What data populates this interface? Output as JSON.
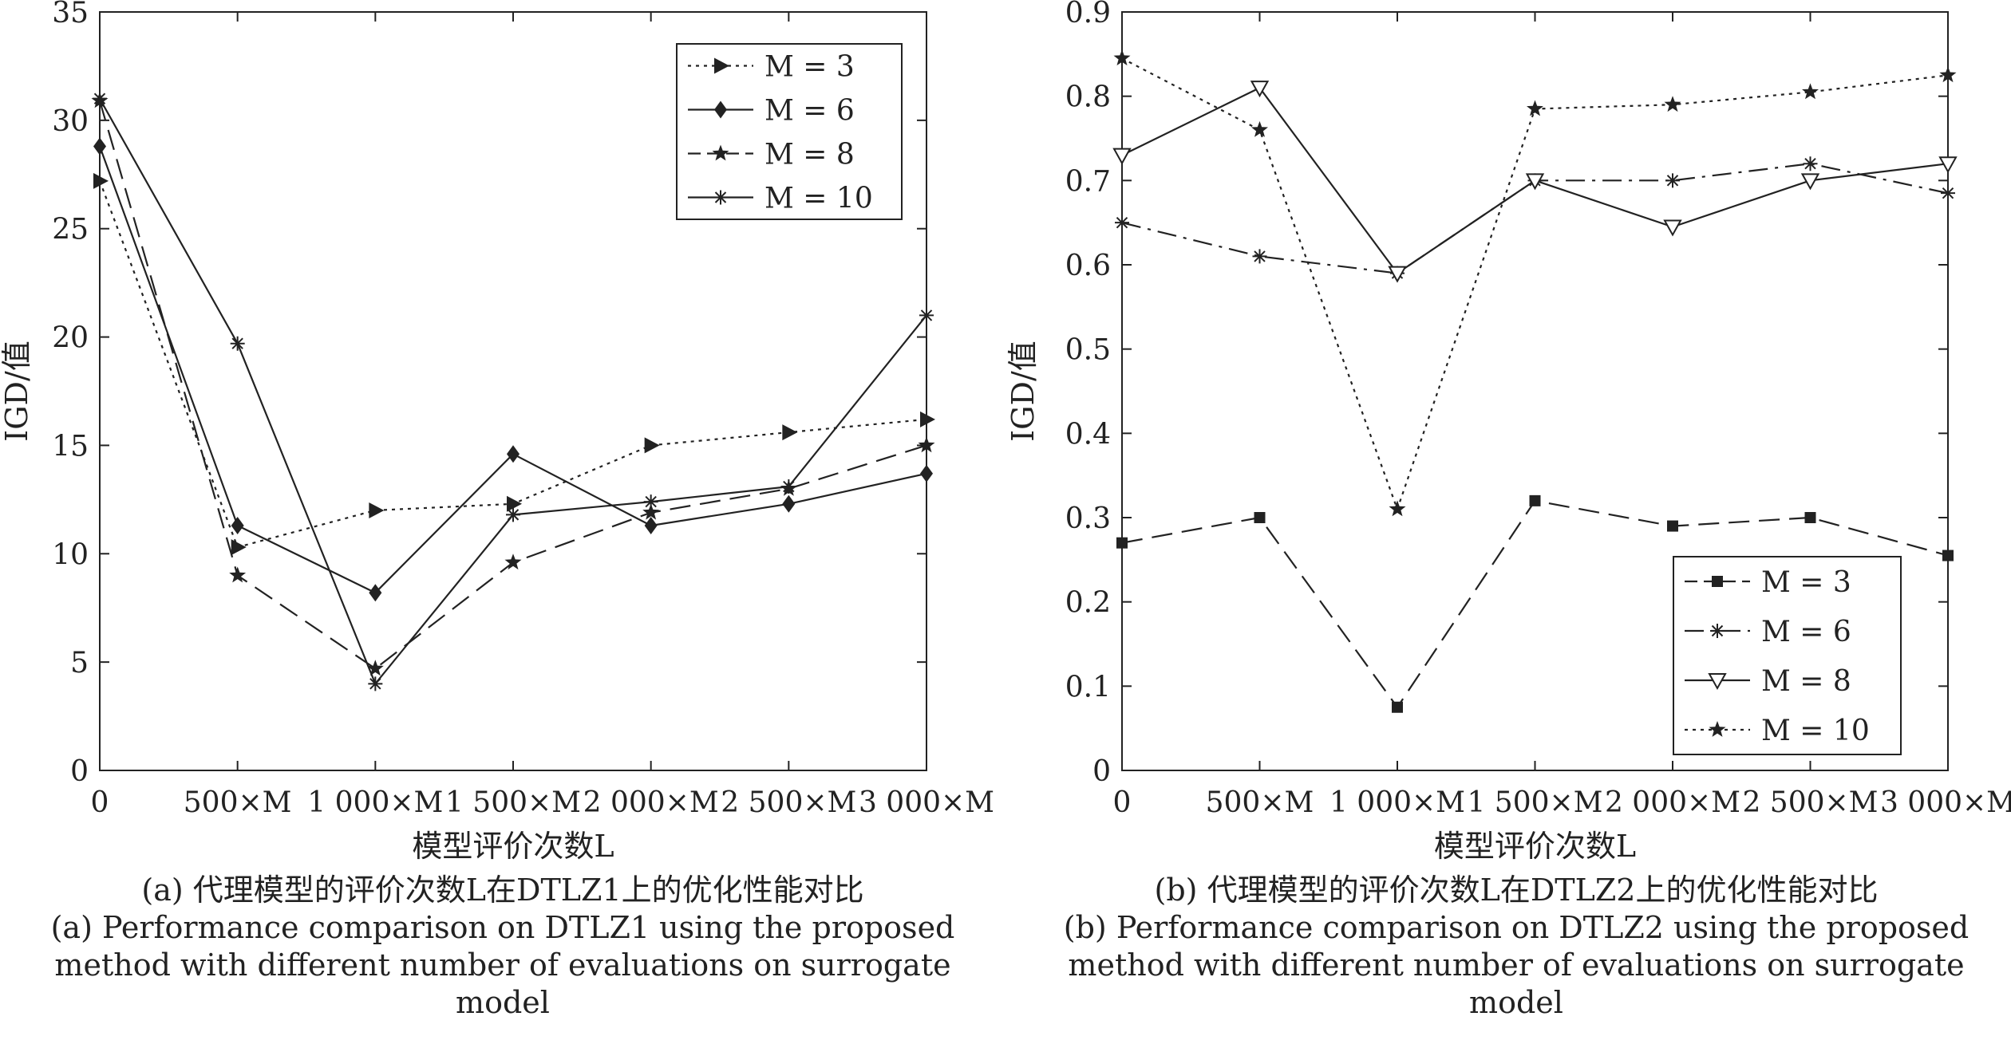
{
  "chart_data": [
    {
      "type": "line",
      "categories": [
        "0",
        "500×M",
        "1 000×M",
        "1 500×M",
        "2 000×M",
        "2 500×M",
        "3 000×M"
      ],
      "xlabel": "模型评价次数L",
      "ylabel": "IGD/值",
      "ylim": [
        0,
        35
      ],
      "yticks": [
        "0",
        "5",
        "10",
        "15",
        "20",
        "25",
        "30",
        "35"
      ],
      "grid": false,
      "legend_position": "top-right",
      "series": [
        {
          "name": "M = 3",
          "style": "dotted",
          "marker": "triangle-right",
          "values": [
            27.2,
            10.3,
            12.0,
            12.3,
            15.0,
            15.6,
            16.2
          ]
        },
        {
          "name": "M = 6",
          "style": "solid",
          "marker": "diamond",
          "values": [
            28.8,
            11.3,
            8.2,
            14.6,
            11.3,
            12.3,
            13.7
          ]
        },
        {
          "name": "M = 8",
          "style": "dashed",
          "marker": "star",
          "values": [
            30.9,
            9.0,
            4.7,
            9.6,
            11.9,
            13.0,
            15.0
          ]
        },
        {
          "name": "M = 10",
          "style": "solid",
          "marker": "asterisk",
          "values": [
            31.0,
            19.7,
            4.0,
            11.8,
            12.4,
            13.1,
            21.0
          ]
        }
      ],
      "caption_cn": "(a) 代理模型的评价次数L在DTLZ1上的优化性能对比",
      "caption_en": [
        "(a) Performance comparison on DTLZ1 using the proposed",
        "method with different number of evaluations on surrogate",
        "model"
      ]
    },
    {
      "type": "line",
      "categories": [
        "0",
        "500×M",
        "1 000×M",
        "1 500×M",
        "2 000×M",
        "2 500×M",
        "3 000×M"
      ],
      "xlabel": "模型评价次数L",
      "ylabel": "IGD/值",
      "ylim": [
        0,
        0.9
      ],
      "yticks": [
        "0",
        "0.1",
        "0.2",
        "0.3",
        "0.4",
        "0.5",
        "0.6",
        "0.7",
        "0.8",
        "0.9"
      ],
      "grid": false,
      "legend_position": "bottom-right",
      "series": [
        {
          "name": "M = 3",
          "style": "dashed",
          "marker": "square",
          "values": [
            0.27,
            0.3,
            0.075,
            0.32,
            0.29,
            0.3,
            0.255
          ]
        },
        {
          "name": "M = 6",
          "style": "dashdot",
          "marker": "asterisk",
          "values": [
            0.65,
            0.61,
            0.59,
            0.7,
            0.7,
            0.72,
            0.685
          ]
        },
        {
          "name": "M = 8",
          "style": "solid",
          "marker": "triangle-down-open",
          "values": [
            0.73,
            0.81,
            0.59,
            0.7,
            0.645,
            0.7,
            0.72
          ]
        },
        {
          "name": "M = 10",
          "style": "dotted",
          "marker": "star",
          "values": [
            0.845,
            0.76,
            0.31,
            0.785,
            0.79,
            0.805,
            0.825
          ]
        }
      ],
      "caption_cn": "(b) 代理模型的评价次数L在DTLZ2上的优化性能对比",
      "caption_en": [
        "(b) Performance comparison on DTLZ2 using the proposed",
        "method with different number of evaluations on surrogate",
        "model"
      ]
    }
  ]
}
